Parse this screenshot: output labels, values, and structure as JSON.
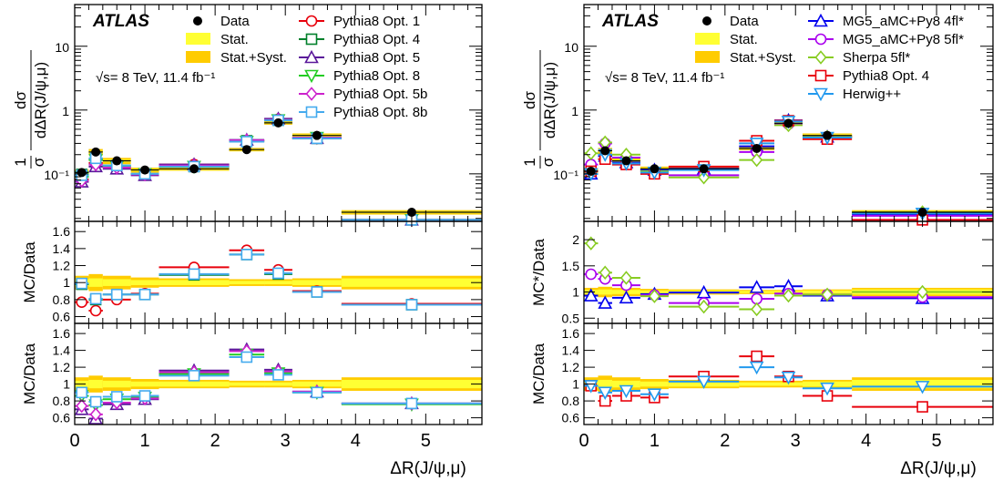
{
  "energy_label": "√s= 8 TeV, 11.4 fb⁻¹",
  "atlas_label": "ATLAS",
  "colors": {
    "stat": "#ffff33",
    "syst": "#ffcc00",
    "opt1": "#e8000b",
    "opt4": "#00802b",
    "opt5": "#5a189a",
    "opt8": "#22cc22",
    "opt5b": "#cc22cc",
    "opt8b": "#44aaee",
    "mg4": "#0000ee",
    "mg5": "#aa00ee",
    "sherpa": "#88cc22",
    "herwig": "#2299ee"
  },
  "chart_data": [
    {
      "panel": "left",
      "type": "scatter",
      "bins": [
        [
          0,
          0.2
        ],
        [
          0.2,
          0.4
        ],
        [
          0.4,
          0.8
        ],
        [
          0.8,
          1.2
        ],
        [
          1.2,
          2.2
        ],
        [
          2.2,
          2.7
        ],
        [
          2.7,
          3.1
        ],
        [
          3.1,
          3.8
        ],
        [
          3.8,
          5.8
        ]
      ],
      "xlabel": "ΔR(J/ψ,μ)",
      "xlim": [
        0,
        5.8
      ],
      "xticks": [
        "0",
        "1",
        "2",
        "3",
        "4",
        "5"
      ],
      "main": {
        "ylabel_num": "dσ",
        "ylabel_den": "dΔR(J/ψ,μ)",
        "ylabel_pre": "1",
        "ylabel_sigma": "σ",
        "yscale": "log",
        "ylim": [
          0.018,
          45
        ],
        "yticks": [
          "10⁻¹",
          "1",
          "10"
        ],
        "data": [
          0.105,
          0.22,
          0.16,
          0.115,
          0.12,
          0.24,
          0.63,
          0.4,
          0.025
        ],
        "stat_unc": [
          0.005,
          0.008,
          0.006,
          0.004,
          0.004,
          0.008,
          0.02,
          0.015,
          0.001
        ],
        "syst_unc": [
          0.012,
          0.025,
          0.018,
          0.01,
          0.008,
          0.015,
          0.04,
          0.03,
          0.002
        ],
        "series": [
          {
            "name": "Pythia8 Opt. 1",
            "color": "opt1",
            "marker": "circle",
            "values": [
              0.082,
              0.148,
              0.128,
              0.1,
              0.14,
              0.33,
              0.72,
              0.36,
              0.019
            ]
          },
          {
            "name": "Pythia8 Opt. 4",
            "color": "opt4",
            "marker": "square",
            "values": [
              0.098,
              0.17,
              0.135,
              0.1,
              0.13,
              0.33,
              0.69,
              0.36,
              0.019
            ]
          },
          {
            "name": "Pythia8 Opt. 5",
            "color": "opt5",
            "marker": "triangle",
            "values": [
              0.075,
              0.13,
              0.12,
              0.095,
              0.14,
              0.34,
              0.73,
              0.36,
              0.019
            ]
          },
          {
            "name": "Pythia8 Opt. 8",
            "color": "opt8",
            "marker": "triangledown",
            "values": [
              0.09,
              0.165,
              0.13,
              0.1,
              0.13,
              0.32,
              0.7,
              0.37,
              0.019
            ]
          },
          {
            "name": "Pythia8 Opt. 5b",
            "color": "opt5b",
            "marker": "diamond",
            "values": [
              0.078,
              0.14,
              0.125,
              0.098,
              0.135,
              0.335,
              0.7,
              0.37,
              0.019
            ]
          },
          {
            "name": "Pythia8 Opt. 8b",
            "color": "opt8b",
            "marker": "square",
            "values": [
              0.095,
              0.175,
              0.135,
              0.1,
              0.13,
              0.32,
              0.69,
              0.36,
              0.019
            ]
          }
        ]
      },
      "ratio1": {
        "ylabel": "MC/Data",
        "ylim": [
          0.52,
          1.72
        ],
        "yticks": [
          "0.6",
          "0.8",
          "1",
          "1.2",
          "1.4",
          "1.6"
        ],
        "stat_unc": [
          0.04,
          0.05,
          0.04,
          0.03,
          0.03,
          0.02,
          0.02,
          0.03,
          0.05
        ],
        "syst_unc": [
          0.08,
          0.1,
          0.08,
          0.06,
          0.05,
          0.04,
          0.04,
          0.05,
          0.08
        ],
        "series": [
          {
            "name": "Pythia8 Opt. 1",
            "color": "opt1",
            "marker": "circle",
            "values": [
              0.77,
              0.67,
              0.8,
              0.87,
              1.18,
              1.38,
              1.15,
              0.9,
              0.75
            ]
          },
          {
            "name": "Pythia8 Opt. 4",
            "color": "opt4",
            "marker": "square",
            "values": [
              0.98,
              0.8,
              0.86,
              0.86,
              1.09,
              1.33,
              1.1,
              0.89,
              0.74
            ]
          },
          {
            "name": "Pythia8 Opt. 8b",
            "color": "opt8b",
            "marker": "square",
            "values": [
              0.99,
              0.81,
              0.86,
              0.86,
              1.1,
              1.33,
              1.11,
              0.89,
              0.74
            ]
          }
        ]
      },
      "ratio2": {
        "ylabel": "MC/Data",
        "ylim": [
          0.52,
          1.72
        ],
        "yticks": [
          "0.6",
          "0.8",
          "1",
          "1.2",
          "1.4",
          "1.6"
        ],
        "series": [
          {
            "name": "Pythia8 Opt. 5",
            "color": "opt5",
            "marker": "triangle",
            "values": [
              0.7,
              0.59,
              0.76,
              0.82,
              1.16,
              1.41,
              1.17,
              0.91,
              0.77
            ]
          },
          {
            "name": "Pythia8 Opt. 8",
            "color": "opt8",
            "marker": "triangledown",
            "values": [
              0.86,
              0.75,
              0.82,
              0.84,
              1.12,
              1.35,
              1.13,
              0.9,
              0.76
            ]
          },
          {
            "name": "Pythia8 Opt. 5b",
            "color": "opt5b",
            "marker": "diamond",
            "values": [
              0.74,
              0.64,
              0.78,
              0.83,
              1.14,
              1.39,
              1.15,
              0.91,
              0.77
            ]
          },
          {
            "name": "Pythia8 Opt. 8b",
            "color": "opt8b",
            "marker": "square",
            "values": [
              0.9,
              0.79,
              0.85,
              0.86,
              1.1,
              1.32,
              1.11,
              0.9,
              0.77
            ]
          }
        ]
      }
    },
    {
      "panel": "right",
      "type": "scatter",
      "bins": [
        [
          0,
          0.2
        ],
        [
          0.2,
          0.4
        ],
        [
          0.4,
          0.8
        ],
        [
          0.8,
          1.2
        ],
        [
          1.2,
          2.2
        ],
        [
          2.2,
          2.7
        ],
        [
          2.7,
          3.1
        ],
        [
          3.1,
          3.8
        ],
        [
          3.8,
          5.8
        ]
      ],
      "xlabel": "ΔR(J/ψ,μ)",
      "xlim": [
        0,
        5.8
      ],
      "xticks": [
        "0",
        "1",
        "2",
        "3",
        "4",
        "5"
      ],
      "main": {
        "ylabel_num": "dσ",
        "ylabel_den": "dΔR(J/ψ,μ)",
        "ylabel_pre": "1",
        "ylabel_sigma": "σ",
        "yscale": "log",
        "ylim": [
          0.018,
          45
        ],
        "yticks": [
          "10⁻¹",
          "1",
          "10"
        ],
        "data": [
          0.11,
          0.23,
          0.16,
          0.12,
          0.12,
          0.25,
          0.62,
          0.4,
          0.025
        ],
        "stat_unc": [
          0.005,
          0.008,
          0.006,
          0.004,
          0.004,
          0.008,
          0.02,
          0.015,
          0.001
        ],
        "syst_unc": [
          0.012,
          0.025,
          0.018,
          0.01,
          0.008,
          0.015,
          0.04,
          0.03,
          0.002
        ],
        "series": [
          {
            "name": "MG5_aMC+Py8 4fl*",
            "color": "mg4",
            "marker": "triangle",
            "values": [
              0.1,
              0.19,
              0.15,
              0.115,
              0.12,
              0.27,
              0.69,
              0.38,
              0.023
            ]
          },
          {
            "name": "MG5_aMC+Py8 5fl*",
            "color": "mg5",
            "marker": "circle",
            "values": [
              0.14,
              0.3,
              0.18,
              0.11,
              0.095,
              0.22,
              0.6,
              0.38,
              0.022
            ]
          },
          {
            "name": "Sherpa 5fl*",
            "color": "sherpa",
            "marker": "diamond",
            "values": [
              0.21,
              0.31,
              0.2,
              0.11,
              0.088,
              0.165,
              0.58,
              0.38,
              0.025
            ]
          },
          {
            "name": "Pythia8 Opt. 4",
            "color": "opt1",
            "marker": "square",
            "values": [
              0.11,
              0.17,
              0.14,
              0.1,
              0.13,
              0.33,
              0.68,
              0.35,
              0.019
            ]
          },
          {
            "name": "Herwig++",
            "color": "herwig",
            "marker": "triangledown",
            "values": [
              0.1,
              0.2,
              0.145,
              0.105,
              0.115,
              0.3,
              0.66,
              0.37,
              0.024
            ]
          }
        ]
      },
      "ratio1": {
        "ylabel": "MC*/Data",
        "ylim": [
          0.4,
          2.35
        ],
        "yticks": [
          "0.5",
          "1",
          "1.5",
          "2"
        ],
        "stat_unc": [
          0.04,
          0.05,
          0.04,
          0.03,
          0.03,
          0.02,
          0.02,
          0.03,
          0.05
        ],
        "syst_unc": [
          0.08,
          0.1,
          0.08,
          0.06,
          0.05,
          0.04,
          0.04,
          0.05,
          0.08
        ],
        "series": [
          {
            "name": "MG5_aMC+Py8 4fl*",
            "color": "mg4",
            "marker": "triangle",
            "values": [
              0.93,
              0.79,
              0.89,
              0.96,
              0.99,
              1.09,
              1.11,
              0.93,
              0.88
            ]
          },
          {
            "name": "MG5_aMC+Py8 5fl*",
            "color": "mg5",
            "marker": "circle",
            "values": [
              1.34,
              1.25,
              1.13,
              0.94,
              0.79,
              0.87,
              0.97,
              0.95,
              0.9
            ]
          },
          {
            "name": "Sherpa 5fl*",
            "color": "sherpa",
            "marker": "diamond",
            "values": [
              1.93,
              1.37,
              1.27,
              0.92,
              0.72,
              0.67,
              0.93,
              0.95,
              1.0
            ]
          }
        ]
      },
      "ratio2": {
        "ylabel": "MC/Data",
        "ylim": [
          0.52,
          1.72
        ],
        "yticks": [
          "0.6",
          "0.8",
          "1",
          "1.2",
          "1.4",
          "1.6"
        ],
        "series": [
          {
            "name": "Pythia8 Opt. 4",
            "color": "opt1",
            "marker": "square",
            "values": [
              0.98,
              0.8,
              0.86,
              0.84,
              1.09,
              1.33,
              1.09,
              0.86,
              0.73
            ]
          },
          {
            "name": "Herwig++",
            "color": "herwig",
            "marker": "triangledown",
            "values": [
              0.98,
              0.9,
              0.92,
              0.88,
              1.03,
              1.2,
              1.08,
              0.95,
              0.97
            ]
          }
        ]
      }
    }
  ],
  "legends": {
    "left_col1": [
      "Data",
      "Stat.",
      "Stat.+Syst."
    ],
    "left_col2": [
      "Pythia8 Opt. 1",
      "Pythia8 Opt. 4",
      "Pythia8 Opt. 5",
      "Pythia8 Opt. 8",
      "Pythia8 Opt. 5b",
      "Pythia8 Opt. 8b"
    ],
    "right_col1": [
      "Data",
      "Stat.",
      "Stat.+Syst."
    ],
    "right_col2": [
      "MG5_aMC+Py8 4fl*",
      "MG5_aMC+Py8 5fl*",
      "Sherpa 5fl*",
      "Pythia8 Opt. 4",
      "Herwig++"
    ]
  }
}
